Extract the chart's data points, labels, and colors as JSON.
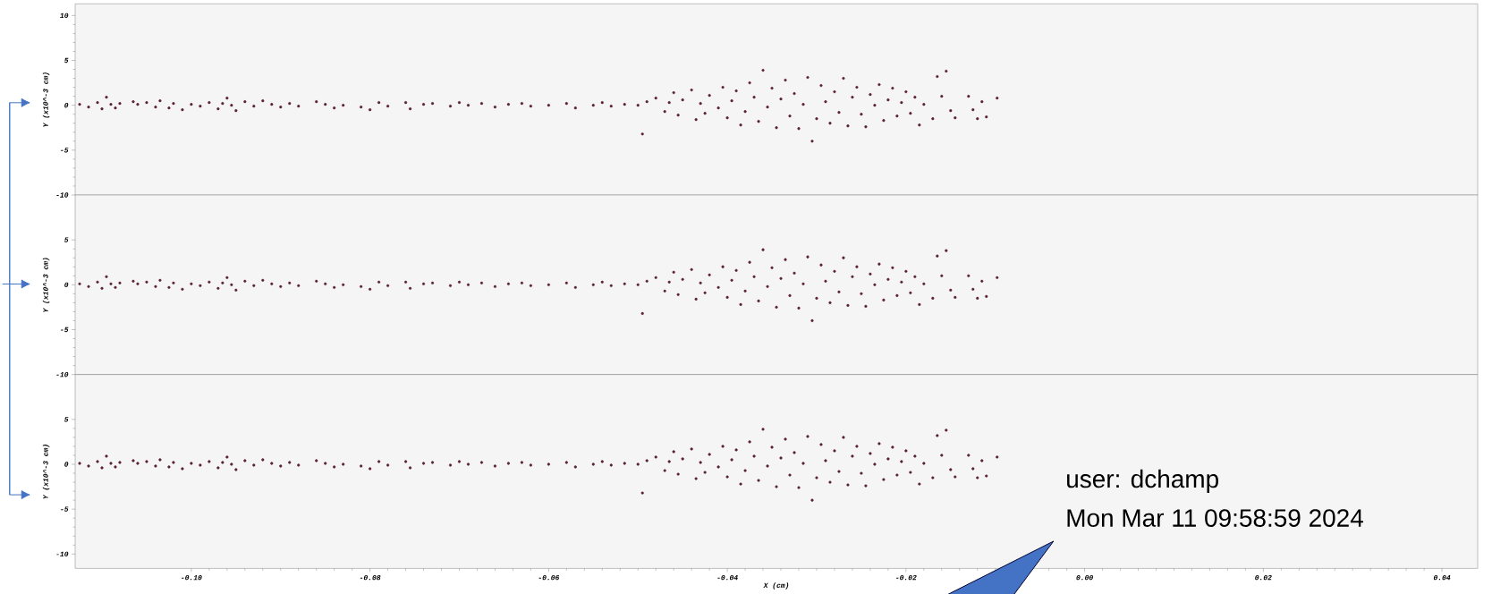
{
  "chart_data": [
    {
      "type": "scatter",
      "ylabel": "Y (x10^-3 cm)",
      "xlim": [
        -0.113,
        0.044
      ],
      "ylim": [
        -10,
        11.3
      ],
      "yticks": [
        -10,
        -5,
        0,
        5,
        10
      ],
      "tick_labels": "y",
      "marker": "circle",
      "series": [
        {
          "color": "#5b2233",
          "x": [
            -0.1125,
            -0.1115,
            -0.1105,
            -0.11,
            -0.1095,
            -0.109,
            -0.1085,
            -0.108,
            -0.1065,
            -0.106,
            -0.105,
            -0.104,
            -0.1035,
            -0.1025,
            -0.102,
            -0.101,
            -0.1,
            -0.099,
            -0.098,
            -0.097,
            -0.0965,
            -0.096,
            -0.0955,
            -0.095,
            -0.094,
            -0.093,
            -0.092,
            -0.091,
            -0.09,
            -0.089,
            -0.088,
            -0.086,
            -0.085,
            -0.084,
            -0.083,
            -0.081,
            -0.08,
            -0.079,
            -0.078,
            -0.076,
            -0.0755,
            -0.074,
            -0.073,
            -0.071,
            -0.07,
            -0.069,
            -0.0675,
            -0.066,
            -0.0645,
            -0.063,
            -0.062,
            -0.06,
            -0.058,
            -0.057,
            -0.055,
            -0.054,
            -0.053,
            -0.0515,
            -0.05,
            -0.0495,
            -0.049,
            -0.048,
            -0.047,
            -0.0465,
            -0.046,
            -0.0455,
            -0.045,
            -0.044,
            -0.0435,
            -0.043,
            -0.0425,
            -0.042,
            -0.041,
            -0.0405,
            -0.04,
            -0.0395,
            -0.039,
            -0.0385,
            -0.038,
            -0.0375,
            -0.037,
            -0.0365,
            -0.036,
            -0.0355,
            -0.035,
            -0.0345,
            -0.034,
            -0.0335,
            -0.033,
            -0.0325,
            -0.032,
            -0.0315,
            -0.031,
            -0.0305,
            -0.03,
            -0.0295,
            -0.029,
            -0.0285,
            -0.028,
            -0.0275,
            -0.027,
            -0.0265,
            -0.026,
            -0.0255,
            -0.025,
            -0.0245,
            -0.024,
            -0.0235,
            -0.023,
            -0.0225,
            -0.022,
            -0.0215,
            -0.021,
            -0.0205,
            -0.02,
            -0.0195,
            -0.019,
            -0.0185,
            -0.018,
            -0.017,
            -0.0165,
            -0.016,
            -0.0155,
            -0.015,
            -0.0145,
            -0.013,
            -0.0125,
            -0.012,
            -0.0115,
            -0.011,
            -0.0098
          ],
          "values": [
            0.1,
            -0.2,
            0.3,
            -0.4,
            0.9,
            0.1,
            -0.3,
            0.2,
            0.4,
            0.1,
            0.3,
            -0.2,
            0.5,
            -0.3,
            0.2,
            -0.5,
            0.1,
            -0.1,
            0.3,
            -0.4,
            0.2,
            0.8,
            0.0,
            -0.6,
            0.4,
            -0.1,
            0.5,
            0.1,
            -0.2,
            0.2,
            -0.1,
            0.4,
            0.1,
            -0.3,
            0.0,
            -0.2,
            -0.5,
            0.3,
            -0.1,
            0.3,
            -0.4,
            0.1,
            0.2,
            -0.1,
            0.3,
            0.0,
            0.2,
            -0.2,
            0.1,
            0.2,
            -0.1,
            0.0,
            0.2,
            -0.3,
            0.0,
            0.3,
            -0.1,
            0.1,
            0.0,
            -3.2,
            0.4,
            0.8,
            -0.7,
            0.3,
            1.4,
            -1.1,
            0.6,
            1.7,
            -1.6,
            0.2,
            -0.9,
            1.1,
            -0.3,
            2.0,
            -1.4,
            0.5,
            1.6,
            -2.2,
            -0.7,
            2.5,
            0.9,
            -1.8,
            3.9,
            -0.2,
            1.9,
            -2.5,
            0.7,
            2.8,
            -1.2,
            1.3,
            -2.6,
            0.1,
            3.1,
            -4.0,
            -1.5,
            2.2,
            0.4,
            -2.0,
            1.5,
            -0.8,
            3.0,
            -2.3,
            0.9,
            2.0,
            -1.0,
            -2.4,
            1.2,
            0.0,
            2.3,
            -1.7,
            0.6,
            1.9,
            -1.2,
            0.3,
            1.5,
            -0.9,
            0.9,
            -2.2,
            0.1,
            -1.5,
            3.2,
            1.0,
            3.8,
            -0.6,
            -1.4,
            1.0,
            -0.5,
            -1.5,
            0.4,
            -1.3,
            0.8
          ]
        }
      ]
    },
    {
      "type": "scatter",
      "ylabel": "Y (x10^-3 cm)",
      "xlim": [
        -0.113,
        0.044
      ],
      "ylim": [
        -10,
        10
      ],
      "yticks": [
        -10,
        -5,
        0,
        5
      ],
      "tick_labels": "y",
      "marker": "circle",
      "series": [
        {
          "color": "#5b2233",
          "x": [
            -0.1125,
            -0.1115,
            -0.1105,
            -0.11,
            -0.1095,
            -0.109,
            -0.1085,
            -0.108,
            -0.1065,
            -0.106,
            -0.105,
            -0.104,
            -0.1035,
            -0.1025,
            -0.102,
            -0.101,
            -0.1,
            -0.099,
            -0.098,
            -0.097,
            -0.0965,
            -0.096,
            -0.0955,
            -0.095,
            -0.094,
            -0.093,
            -0.092,
            -0.091,
            -0.09,
            -0.089,
            -0.088,
            -0.086,
            -0.085,
            -0.084,
            -0.083,
            -0.081,
            -0.08,
            -0.079,
            -0.078,
            -0.076,
            -0.0755,
            -0.074,
            -0.073,
            -0.071,
            -0.07,
            -0.069,
            -0.0675,
            -0.066,
            -0.0645,
            -0.063,
            -0.062,
            -0.06,
            -0.058,
            -0.057,
            -0.055,
            -0.054,
            -0.053,
            -0.0515,
            -0.05,
            -0.0495,
            -0.049,
            -0.048,
            -0.047,
            -0.0465,
            -0.046,
            -0.0455,
            -0.045,
            -0.044,
            -0.0435,
            -0.043,
            -0.0425,
            -0.042,
            -0.041,
            -0.0405,
            -0.04,
            -0.0395,
            -0.039,
            -0.0385,
            -0.038,
            -0.0375,
            -0.037,
            -0.0365,
            -0.036,
            -0.0355,
            -0.035,
            -0.0345,
            -0.034,
            -0.0335,
            -0.033,
            -0.0325,
            -0.032,
            -0.0315,
            -0.031,
            -0.0305,
            -0.03,
            -0.0295,
            -0.029,
            -0.0285,
            -0.028,
            -0.0275,
            -0.027,
            -0.0265,
            -0.026,
            -0.0255,
            -0.025,
            -0.0245,
            -0.024,
            -0.0235,
            -0.023,
            -0.0225,
            -0.022,
            -0.0215,
            -0.021,
            -0.0205,
            -0.02,
            -0.0195,
            -0.019,
            -0.0185,
            -0.018,
            -0.017,
            -0.0165,
            -0.016,
            -0.0155,
            -0.015,
            -0.0145,
            -0.013,
            -0.0125,
            -0.012,
            -0.0115,
            -0.011,
            -0.0098
          ],
          "values": [
            0.1,
            -0.2,
            0.3,
            -0.4,
            0.9,
            0.1,
            -0.3,
            0.2,
            0.4,
            0.1,
            0.3,
            -0.2,
            0.5,
            -0.3,
            0.2,
            -0.5,
            0.1,
            -0.1,
            0.3,
            -0.4,
            0.2,
            0.8,
            0.0,
            -0.6,
            0.4,
            -0.1,
            0.5,
            0.1,
            -0.2,
            0.2,
            -0.1,
            0.4,
            0.1,
            -0.3,
            0.0,
            -0.2,
            -0.5,
            0.3,
            -0.1,
            0.3,
            -0.4,
            0.1,
            0.2,
            -0.1,
            0.3,
            0.0,
            0.2,
            -0.2,
            0.1,
            0.2,
            -0.1,
            0.0,
            0.2,
            -0.3,
            0.0,
            0.3,
            -0.1,
            0.1,
            0.0,
            -3.2,
            0.4,
            0.8,
            -0.7,
            0.3,
            1.4,
            -1.1,
            0.6,
            1.7,
            -1.6,
            0.2,
            -0.9,
            1.1,
            -0.3,
            2.0,
            -1.4,
            0.5,
            1.6,
            -2.2,
            -0.7,
            2.5,
            0.9,
            -1.8,
            3.9,
            -0.2,
            1.9,
            -2.5,
            0.7,
            2.8,
            -1.2,
            1.3,
            -2.6,
            0.1,
            3.1,
            -4.0,
            -1.5,
            2.2,
            0.4,
            -2.0,
            1.5,
            -0.8,
            3.0,
            -2.3,
            0.9,
            2.0,
            -1.0,
            -2.4,
            1.2,
            0.0,
            2.3,
            -1.7,
            0.6,
            1.9,
            -1.2,
            0.3,
            1.5,
            -0.9,
            0.9,
            -2.2,
            0.1,
            -1.5,
            3.2,
            1.0,
            3.8,
            -0.6,
            -1.4,
            1.0,
            -0.5,
            -1.5,
            0.4,
            -1.3,
            0.8
          ]
        }
      ]
    },
    {
      "type": "scatter",
      "ylabel": "Y (x10^-3 cm)",
      "xlabel": "X (cm)",
      "xlim": [
        -0.113,
        0.044
      ],
      "ylim": [
        -11.6,
        10
      ],
      "xticks": [
        {
          "value": -0.1,
          "label": "-0.10"
        },
        {
          "value": -0.08,
          "label": "-0.08"
        },
        {
          "value": -0.06,
          "label": "-0.06"
        },
        {
          "value": -0.04,
          "label": "-0.04"
        },
        {
          "value": -0.02,
          "label": "-0.02"
        },
        {
          "value": 0,
          "label": "0.00"
        },
        {
          "value": 0.02,
          "label": "0.02"
        },
        {
          "value": 0.04,
          "label": "0.04"
        }
      ],
      "yticks": [
        -10,
        -5,
        0,
        5
      ],
      "marker": "circle",
      "annotations": [
        "user: dchamp",
        "Mon Mar 11 09:58:59 2024"
      ],
      "series": [
        {
          "color": "#5b2233",
          "x": [
            -0.1125,
            -0.1115,
            -0.1105,
            -0.11,
            -0.1095,
            -0.109,
            -0.1085,
            -0.108,
            -0.1065,
            -0.106,
            -0.105,
            -0.104,
            -0.1035,
            -0.1025,
            -0.102,
            -0.101,
            -0.1,
            -0.099,
            -0.098,
            -0.097,
            -0.0965,
            -0.096,
            -0.0955,
            -0.095,
            -0.094,
            -0.093,
            -0.092,
            -0.091,
            -0.09,
            -0.089,
            -0.088,
            -0.086,
            -0.085,
            -0.084,
            -0.083,
            -0.081,
            -0.08,
            -0.079,
            -0.078,
            -0.076,
            -0.0755,
            -0.074,
            -0.073,
            -0.071,
            -0.07,
            -0.069,
            -0.0675,
            -0.066,
            -0.0645,
            -0.063,
            -0.062,
            -0.06,
            -0.058,
            -0.057,
            -0.055,
            -0.054,
            -0.053,
            -0.0515,
            -0.05,
            -0.0495,
            -0.049,
            -0.048,
            -0.047,
            -0.0465,
            -0.046,
            -0.0455,
            -0.045,
            -0.044,
            -0.0435,
            -0.043,
            -0.0425,
            -0.042,
            -0.041,
            -0.0405,
            -0.04,
            -0.0395,
            -0.039,
            -0.0385,
            -0.038,
            -0.0375,
            -0.037,
            -0.0365,
            -0.036,
            -0.0355,
            -0.035,
            -0.0345,
            -0.034,
            -0.0335,
            -0.033,
            -0.0325,
            -0.032,
            -0.0315,
            -0.031,
            -0.0305,
            -0.03,
            -0.0295,
            -0.029,
            -0.0285,
            -0.028,
            -0.0275,
            -0.027,
            -0.0265,
            -0.026,
            -0.0255,
            -0.025,
            -0.0245,
            -0.024,
            -0.0235,
            -0.023,
            -0.0225,
            -0.022,
            -0.0215,
            -0.021,
            -0.0205,
            -0.02,
            -0.0195,
            -0.019,
            -0.0185,
            -0.018,
            -0.017,
            -0.0165,
            -0.016,
            -0.0155,
            -0.015,
            -0.0145,
            -0.013,
            -0.0125,
            -0.012,
            -0.0115,
            -0.011,
            -0.0098
          ],
          "values": [
            0.1,
            -0.2,
            0.3,
            -0.4,
            0.9,
            0.1,
            -0.3,
            0.2,
            0.4,
            0.1,
            0.3,
            -0.2,
            0.5,
            -0.3,
            0.2,
            -0.5,
            0.1,
            -0.1,
            0.3,
            -0.4,
            0.2,
            0.8,
            0.0,
            -0.6,
            0.4,
            -0.1,
            0.5,
            0.1,
            -0.2,
            0.2,
            -0.1,
            0.4,
            0.1,
            -0.3,
            0.0,
            -0.2,
            -0.5,
            0.3,
            -0.1,
            0.3,
            -0.4,
            0.1,
            0.2,
            -0.1,
            0.3,
            0.0,
            0.2,
            -0.2,
            0.1,
            0.2,
            -0.1,
            0.0,
            0.2,
            -0.3,
            0.0,
            0.3,
            -0.1,
            0.1,
            0.0,
            -3.2,
            0.4,
            0.8,
            -0.7,
            0.3,
            1.4,
            -1.1,
            0.6,
            1.7,
            -1.6,
            0.2,
            -0.9,
            1.1,
            -0.3,
            2.0,
            -1.4,
            0.5,
            1.6,
            -2.2,
            -0.7,
            2.5,
            0.9,
            -1.8,
            3.9,
            -0.2,
            1.9,
            -2.5,
            0.7,
            2.8,
            -1.2,
            1.3,
            -2.6,
            0.1,
            3.1,
            -4.0,
            -1.5,
            2.2,
            0.4,
            -2.0,
            1.5,
            -0.8,
            3.0,
            -2.3,
            0.9,
            2.0,
            -1.0,
            -2.4,
            1.2,
            0.0,
            2.3,
            -1.7,
            0.6,
            1.9,
            -1.2,
            0.3,
            1.5,
            -0.9,
            0.9,
            -2.2,
            0.1,
            -1.5,
            3.2,
            1.0,
            3.8,
            -0.6,
            -1.4,
            1.0,
            -0.5,
            -1.5,
            0.4,
            -1.3,
            0.8
          ]
        }
      ]
    }
  ]
}
